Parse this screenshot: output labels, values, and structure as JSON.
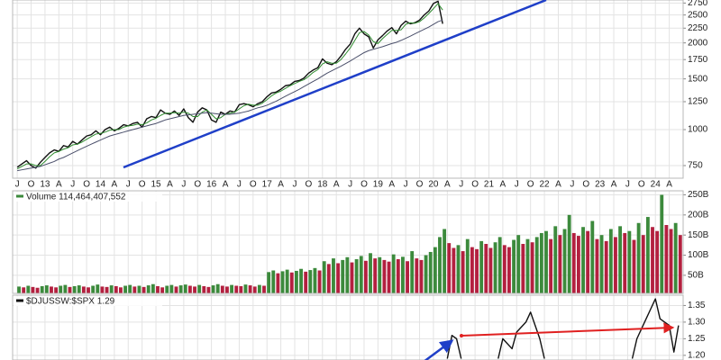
{
  "chart_data": [
    {
      "type": "line",
      "log": true,
      "grid": true,
      "xlim": [
        "2012-06",
        "2024-07"
      ],
      "ylim": [
        678,
        2818
      ],
      "yticks": [
        750,
        1000,
        1250,
        1500,
        1750,
        2000,
        2250,
        2500,
        2750
      ],
      "xticks": [
        {
          "value": "2012-07",
          "label": "J"
        },
        {
          "value": "2012-10",
          "label": "O"
        },
        {
          "value": "2013-01",
          "label": "13"
        },
        {
          "value": "2013-04",
          "label": "A"
        },
        {
          "value": "2013-07",
          "label": "J"
        },
        {
          "value": "2013-10",
          "label": "O"
        },
        {
          "value": "2014-01",
          "label": "14"
        },
        {
          "value": "2014-04",
          "label": "A"
        },
        {
          "value": "2014-07",
          "label": "J"
        },
        {
          "value": "2014-10",
          "label": "O"
        },
        {
          "value": "2015-01",
          "label": "15"
        },
        {
          "value": "2015-04",
          "label": "A"
        },
        {
          "value": "2015-07",
          "label": "J"
        },
        {
          "value": "2015-10",
          "label": "O"
        },
        {
          "value": "2016-01",
          "label": "16"
        },
        {
          "value": "2016-04",
          "label": "A"
        },
        {
          "value": "2016-07",
          "label": "J"
        },
        {
          "value": "2016-10",
          "label": "O"
        },
        {
          "value": "2017-01",
          "label": "17"
        },
        {
          "value": "2017-04",
          "label": "A"
        },
        {
          "value": "2017-07",
          "label": "J"
        },
        {
          "value": "2017-10",
          "label": "O"
        },
        {
          "value": "2018-01",
          "label": "18"
        },
        {
          "value": "2018-04",
          "label": "A"
        },
        {
          "value": "2018-07",
          "label": "J"
        },
        {
          "value": "2018-10",
          "label": "O"
        },
        {
          "value": "2019-01",
          "label": "19"
        },
        {
          "value": "2019-04",
          "label": "A"
        },
        {
          "value": "2019-07",
          "label": "J"
        },
        {
          "value": "2019-10",
          "label": "O"
        },
        {
          "value": "2020-01",
          "label": "20"
        },
        {
          "value": "2020-04",
          "label": "A"
        },
        {
          "value": "2020-07",
          "label": "J"
        },
        {
          "value": "2020-10",
          "label": "O"
        },
        {
          "value": "2021-01",
          "label": "21"
        },
        {
          "value": "2021-04",
          "label": "A"
        },
        {
          "value": "2021-07",
          "label": "J"
        },
        {
          "value": "2021-10",
          "label": "O"
        },
        {
          "value": "2022-01",
          "label": "22"
        },
        {
          "value": "2022-04",
          "label": "A"
        },
        {
          "value": "2022-07",
          "label": "J"
        },
        {
          "value": "2022-10",
          "label": "O"
        },
        {
          "value": "2023-01",
          "label": "23"
        },
        {
          "value": "2023-04",
          "label": "A"
        },
        {
          "value": "2023-07",
          "label": "J"
        },
        {
          "value": "2023-10",
          "label": "O"
        },
        {
          "value": "2024-01",
          "label": "24"
        },
        {
          "value": "2024-04",
          "label": "A"
        }
      ],
      "x": [
        "2012-07",
        "2012-08",
        "2012-09",
        "2012-10",
        "2012-11",
        "2012-12",
        "2013-01",
        "2013-02",
        "2013-03",
        "2013-04",
        "2013-05",
        "2013-06",
        "2013-07",
        "2013-08",
        "2013-09",
        "2013-10",
        "2013-11",
        "2013-12",
        "2014-01",
        "2014-02",
        "2014-03",
        "2014-04",
        "2014-05",
        "2014-06",
        "2014-07",
        "2014-08",
        "2014-09",
        "2014-10",
        "2014-11",
        "2014-12",
        "2015-01",
        "2015-02",
        "2015-03",
        "2015-04",
        "2015-05",
        "2015-06",
        "2015-07",
        "2015-08",
        "2015-09",
        "2015-10",
        "2015-11",
        "2015-12",
        "2016-01",
        "2016-02",
        "2016-03",
        "2016-04",
        "2016-05",
        "2016-06",
        "2016-07",
        "2016-08",
        "2016-09",
        "2016-10",
        "2016-11",
        "2016-12",
        "2017-01",
        "2017-02",
        "2017-03",
        "2017-04",
        "2017-05",
        "2017-06",
        "2017-07",
        "2017-08",
        "2017-09",
        "2017-10",
        "2017-11",
        "2017-12",
        "2018-01",
        "2018-02",
        "2018-03",
        "2018-04",
        "2018-05",
        "2018-06",
        "2018-07",
        "2018-08",
        "2018-09",
        "2018-10",
        "2018-11",
        "2018-12",
        "2019-01",
        "2019-02",
        "2019-03",
        "2019-04",
        "2019-05",
        "2019-06",
        "2019-07",
        "2019-08",
        "2019-09",
        "2019-10",
        "2019-11",
        "2019-12",
        "2020-01",
        "2020-02",
        "2020-03"
      ],
      "series": [
        {
          "color": "#111111",
          "values": [
            740,
            760,
            780,
            750,
            735,
            770,
            800,
            830,
            850,
            840,
            880,
            870,
            910,
            890,
            920,
            950,
            960,
            990,
            960,
            1000,
            1020,
            990,
            1010,
            1040,
            1030,
            1050,
            1060,
            1020,
            1090,
            1110,
            1100,
            1170,
            1140,
            1130,
            1160,
            1120,
            1180,
            1100,
            1060,
            1150,
            1190,
            1170,
            1080,
            1060,
            1150,
            1130,
            1160,
            1150,
            1220,
            1230,
            1220,
            1200,
            1230,
            1250,
            1300,
            1340,
            1350,
            1380,
            1420,
            1430,
            1470,
            1480,
            1510,
            1570,
            1610,
            1640,
            1760,
            1700,
            1680,
            1720,
            1800,
            1900,
            1980,
            2150,
            2250,
            2150,
            2100,
            1920,
            2050,
            2120,
            2200,
            2260,
            2150,
            2300,
            2380,
            2330,
            2350,
            2400,
            2500,
            2580,
            2740,
            2790,
            2330
          ]
        },
        {
          "color": "#2e8b2e",
          "values": [
            730,
            745,
            760,
            760,
            750,
            750,
            775,
            805,
            830,
            840,
            855,
            865,
            885,
            890,
            905,
            925,
            945,
            965,
            970,
            980,
            995,
            1000,
            1000,
            1020,
            1030,
            1035,
            1045,
            1040,
            1055,
            1080,
            1095,
            1120,
            1140,
            1140,
            1145,
            1140,
            1150,
            1140,
            1110,
            1110,
            1150,
            1170,
            1130,
            1090,
            1100,
            1130,
            1140,
            1150,
            1180,
            1210,
            1225,
            1215,
            1215,
            1235,
            1270,
            1310,
            1340,
            1360,
            1390,
            1420,
            1445,
            1470,
            1490,
            1530,
            1580,
            1615,
            1690,
            1720,
            1700,
            1700,
            1750,
            1830,
            1920,
            2040,
            2170,
            2190,
            2130,
            2020,
            1990,
            2070,
            2140,
            2210,
            2210,
            2220,
            2320,
            2350,
            2340,
            2370,
            2440,
            2530,
            2630,
            2740,
            2600
          ]
        },
        {
          "color": "#4a4f6a",
          "values": [
            720,
            725,
            730,
            735,
            740,
            745,
            755,
            765,
            775,
            790,
            800,
            815,
            830,
            845,
            860,
            875,
            890,
            905,
            920,
            935,
            950,
            960,
            970,
            980,
            990,
            1000,
            1010,
            1020,
            1030,
            1040,
            1050,
            1065,
            1080,
            1090,
            1100,
            1110,
            1120,
            1125,
            1130,
            1135,
            1140,
            1145,
            1140,
            1135,
            1130,
            1130,
            1130,
            1135,
            1140,
            1150,
            1160,
            1175,
            1190,
            1200,
            1215,
            1235,
            1255,
            1280,
            1305,
            1330,
            1355,
            1380,
            1410,
            1440,
            1470,
            1500,
            1535,
            1570,
            1600,
            1630,
            1660,
            1695,
            1730,
            1770,
            1810,
            1850,
            1880,
            1900,
            1920,
            1940,
            1965,
            1990,
            2010,
            2040,
            2075,
            2110,
            2150,
            2190,
            2230,
            2270,
            2320,
            2370,
            2400
          ]
        }
      ]
    },
    {
      "type": "bar",
      "title": "Volume 114,464,407,552",
      "grid": true,
      "up_color": "#3c8a3c",
      "down_color": "#b3203f",
      "ylim": [
        5,
        260
      ],
      "yticks": [
        {
          "value": 50,
          "label": "50B"
        },
        {
          "value": 100,
          "label": "100B"
        },
        {
          "value": 150,
          "label": "150B"
        },
        {
          "value": 200,
          "label": "200B"
        },
        {
          "value": 250,
          "label": "250B"
        }
      ],
      "x": [
        "2012-07",
        "2012-08",
        "2012-09",
        "2012-10",
        "2012-11",
        "2012-12",
        "2013-01",
        "2013-02",
        "2013-03",
        "2013-04",
        "2013-05",
        "2013-06",
        "2013-07",
        "2013-08",
        "2013-09",
        "2013-10",
        "2013-11",
        "2013-12",
        "2014-01",
        "2014-02",
        "2014-03",
        "2014-04",
        "2014-05",
        "2014-06",
        "2014-07",
        "2014-08",
        "2014-09",
        "2014-10",
        "2014-11",
        "2014-12",
        "2015-01",
        "2015-02",
        "2015-03",
        "2015-04",
        "2015-05",
        "2015-06",
        "2015-07",
        "2015-08",
        "2015-09",
        "2015-10",
        "2015-11",
        "2015-12",
        "2016-01",
        "2016-02",
        "2016-03",
        "2016-04",
        "2016-05",
        "2016-06",
        "2016-07",
        "2016-08",
        "2016-09",
        "2016-10",
        "2016-11",
        "2016-12",
        "2017-01",
        "2017-02",
        "2017-03",
        "2017-04",
        "2017-05",
        "2017-06",
        "2017-07",
        "2017-08",
        "2017-09",
        "2017-10",
        "2017-11",
        "2017-12",
        "2018-01",
        "2018-02",
        "2018-03",
        "2018-04",
        "2018-05",
        "2018-06",
        "2018-07",
        "2018-08",
        "2018-09",
        "2018-10",
        "2018-11",
        "2018-12",
        "2019-01",
        "2019-02",
        "2019-03",
        "2019-04",
        "2019-05",
        "2019-06",
        "2019-07",
        "2019-08",
        "2019-09",
        "2019-10",
        "2019-11",
        "2019-12",
        "2020-01",
        "2020-02",
        "2020-03",
        "2020-04",
        "2020-05",
        "2020-06",
        "2020-07",
        "2020-08",
        "2020-09",
        "2020-10",
        "2020-11",
        "2020-12",
        "2021-01",
        "2021-02",
        "2021-03",
        "2021-04",
        "2021-05",
        "2021-06",
        "2021-07",
        "2021-08",
        "2021-09",
        "2021-10",
        "2021-11",
        "2021-12",
        "2022-01",
        "2022-02",
        "2022-03",
        "2022-04",
        "2022-05",
        "2022-06",
        "2022-07",
        "2022-08",
        "2022-09",
        "2022-10",
        "2022-11",
        "2022-12",
        "2023-01",
        "2023-02",
        "2023-03",
        "2023-04",
        "2023-05",
        "2023-06",
        "2023-07",
        "2023-08",
        "2023-09",
        "2023-10",
        "2023-11",
        "2023-12",
        "2024-01",
        "2024-02",
        "2024-03",
        "2024-04",
        "2024-05",
        "2024-06"
      ],
      "values": [
        22,
        20,
        24,
        21,
        19,
        23,
        25,
        22,
        20,
        24,
        26,
        21,
        23,
        25,
        22,
        20,
        24,
        27,
        22,
        21,
        25,
        23,
        20,
        24,
        26,
        22,
        24,
        21,
        25,
        28,
        23,
        20,
        24,
        26,
        22,
        25,
        27,
        24,
        22,
        26,
        23,
        21,
        25,
        28,
        24,
        22,
        26,
        24,
        23,
        27,
        25,
        22,
        26,
        24,
        58,
        62,
        55,
        60,
        64,
        57,
        61,
        66,
        59,
        63,
        68,
        62,
        85,
        78,
        92,
        80,
        88,
        95,
        82,
        90,
        98,
        86,
        105,
        92,
        95,
        88,
        84,
        102,
        90,
        96,
        85,
        110,
        92,
        88,
        100,
        108,
        120,
        145,
        165,
        130,
        118,
        125,
        110,
        140,
        120,
        115,
        135,
        128,
        118,
        132,
        145,
        125,
        120,
        138,
        150,
        128,
        140,
        132,
        145,
        155,
        160,
        140,
        172,
        150,
        165,
        200,
        155,
        148,
        170,
        160,
        185,
        140,
        150,
        135,
        165,
        145,
        172,
        155,
        160,
        138,
        180,
        150,
        195,
        170,
        160,
        250,
        175,
        165,
        180,
        150
      ]
    },
    {
      "type": "line",
      "title": "$DJUSSW:$SPX 1.29",
      "grid": true,
      "color": "#111111",
      "ylim": [
        1.186,
        1.381
      ],
      "yticks": [
        {
          "value": 1.2,
          "label": "1.20"
        },
        1.25,
        {
          "value": 1.3,
          "label": "1.30"
        },
        1.35
      ],
      "x": [
        "2020-04",
        "2020-05",
        "2020-06",
        "2020-07",
        "2020-08",
        "2021-03",
        "2021-04",
        "2021-06",
        "2021-07",
        "2021-09",
        "2021-10",
        "2021-11",
        "2021-12",
        "2022-01",
        "2022-02",
        "2023-08",
        "2023-09",
        "2023-11",
        "2023-12",
        "2024-01",
        "2024-02",
        "2024-03",
        "2024-04",
        "2024-05",
        "2024-06"
      ],
      "values": [
        1.19,
        1.26,
        1.25,
        1.19,
        null,
        1.19,
        1.25,
        1.22,
        1.27,
        1.3,
        1.33,
        1.29,
        1.25,
        1.19,
        null,
        1.19,
        1.25,
        1.31,
        1.34,
        1.37,
        1.31,
        1.3,
        1.29,
        1.21,
        1.29
      ]
    }
  ]
}
